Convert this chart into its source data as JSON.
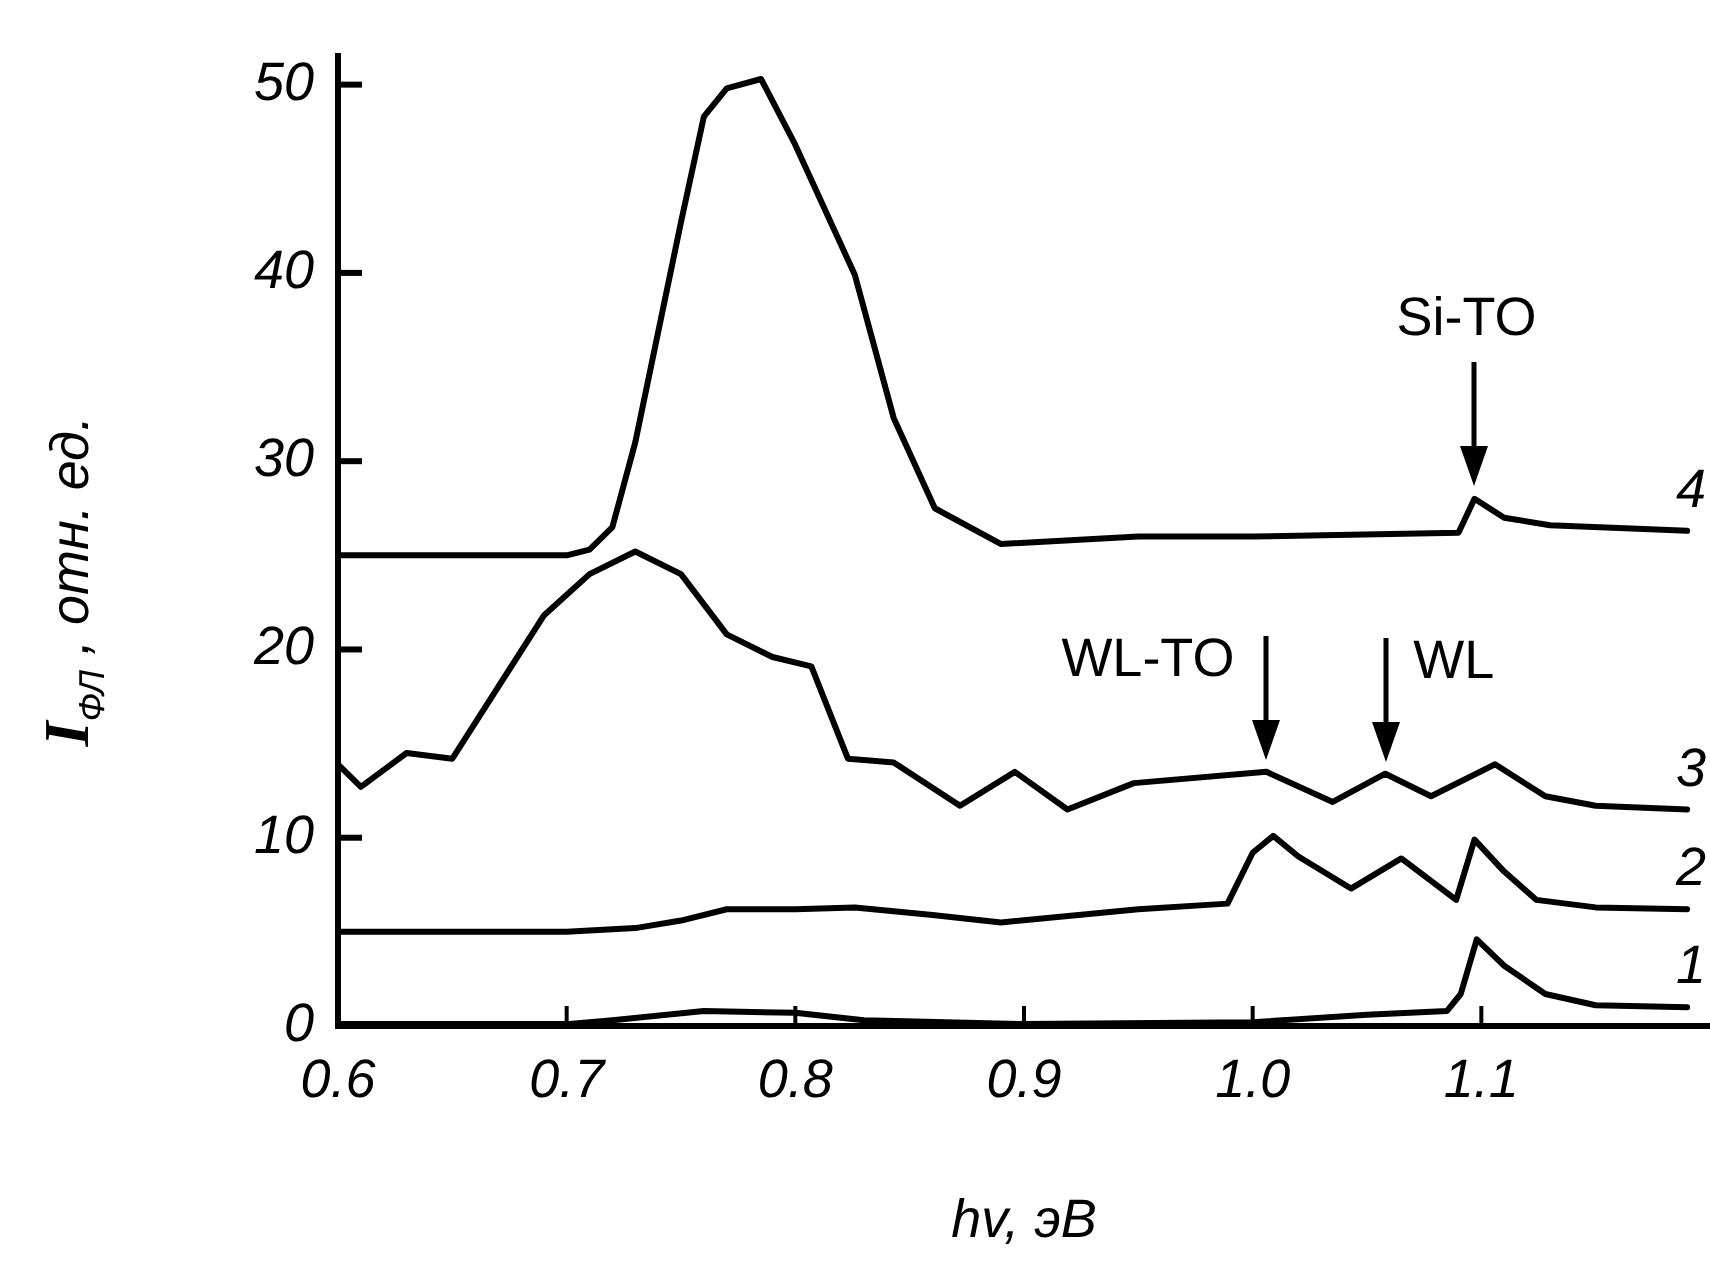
{
  "chart_data": {
    "type": "line",
    "xlabel": "hv, эВ",
    "ylabel": "I$_{ФЛ}$ , отн. ед.",
    "xlim": [
      0.6,
      1.2
    ],
    "ylim": [
      0,
      51.5
    ],
    "xticks": [
      0.6,
      0.7,
      0.8,
      0.9,
      {
        "value": 1,
        "label": "1.0"
      },
      1.1
    ],
    "yticks": [
      0,
      10,
      20,
      30,
      40,
      50
    ],
    "grid": false,
    "legend": false,
    "marker": "none",
    "line_style": "solid",
    "series": [
      {
        "name": "1",
        "color": "#000000",
        "x": [
          0.6,
          0.7,
          0.72,
          0.76,
          0.8,
          0.83,
          0.9,
          1.0,
          1.05,
          1.085,
          1.091,
          1.098,
          1.11,
          1.128,
          1.15,
          1.19
        ],
        "values": [
          0.1,
          0.1,
          0.3,
          0.8,
          0.7,
          0.3,
          0.1,
          0.2,
          0.6,
          0.8,
          1.7,
          4.6,
          3.2,
          1.7,
          1.1,
          1.0
        ]
      },
      {
        "name": "2",
        "color": "#000000",
        "x": [
          0.6,
          0.7,
          0.73,
          0.75,
          0.77,
          0.8,
          0.826,
          0.86,
          0.89,
          0.95,
          0.989,
          1.0,
          1.009,
          1.02,
          1.043,
          1.065,
          1.089,
          1.097,
          1.11,
          1.124,
          1.15,
          1.19
        ],
        "values": [
          5.0,
          5.0,
          5.2,
          5.6,
          6.2,
          6.2,
          6.3,
          5.9,
          5.5,
          6.2,
          6.5,
          9.2,
          10.1,
          9.0,
          7.3,
          8.9,
          6.7,
          9.9,
          8.2,
          6.7,
          6.3,
          6.2
        ]
      },
      {
        "name": "3",
        "color": "#000000",
        "x": [
          0.6,
          0.61,
          0.63,
          0.65,
          0.67,
          0.69,
          0.71,
          0.73,
          0.75,
          0.77,
          0.79,
          0.807,
          0.823,
          0.843,
          0.872,
          0.896,
          0.919,
          0.948,
          1.006,
          1.035,
          1.058,
          1.078,
          1.106,
          1.128,
          1.15,
          1.19
        ],
        "values": [
          13.9,
          12.7,
          14.5,
          14.2,
          18.0,
          21.8,
          24.0,
          25.2,
          24.0,
          20.8,
          19.6,
          19.1,
          14.2,
          14.0,
          11.7,
          13.5,
          11.5,
          12.9,
          13.5,
          11.9,
          13.4,
          12.2,
          13.9,
          12.2,
          11.7,
          11.5
        ]
      },
      {
        "name": "4",
        "color": "#000000",
        "x": [
          0.6,
          0.7,
          0.71,
          0.72,
          0.73,
          0.75,
          0.76,
          0.77,
          0.785,
          0.8,
          0.826,
          0.843,
          0.861,
          0.89,
          0.95,
          1.0,
          1.09,
          1.097,
          1.11,
          1.13,
          1.19
        ],
        "values": [
          25.0,
          25.0,
          25.3,
          26.5,
          31.0,
          42.7,
          48.3,
          49.8,
          50.3,
          46.8,
          39.9,
          32.3,
          27.5,
          25.6,
          26.0,
          26.0,
          26.2,
          28.0,
          27.0,
          26.6,
          26.3
        ]
      }
    ],
    "annotations": [
      {
        "text": "Si-TO",
        "x": 1.097,
        "y": 28.0
      },
      {
        "text": "WL-TO",
        "x": 1.006,
        "y": 13.5
      },
      {
        "text": "WL",
        "x": 1.058,
        "y": 13.4
      }
    ]
  }
}
